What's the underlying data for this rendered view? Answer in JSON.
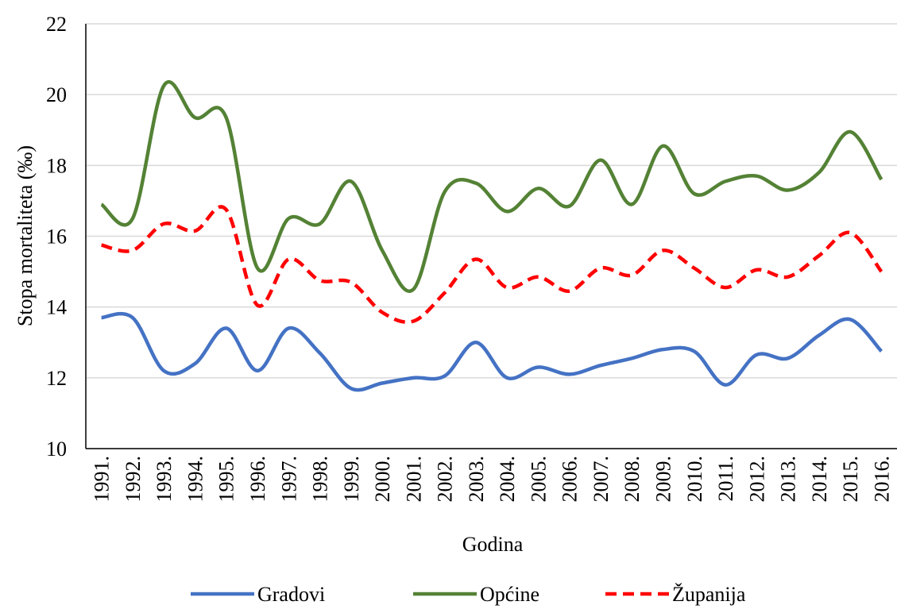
{
  "chart_data": {
    "type": "line",
    "x_label": "Godina",
    "y_label": "Stopa mortaliteta (‰)",
    "categories": [
      "1991.",
      "1992.",
      "1993.",
      "1994.",
      "1995.",
      "1996.",
      "1997.",
      "1998.",
      "1999.",
      "2000.",
      "2001.",
      "2002.",
      "2003.",
      "2004.",
      "2005.",
      "2006.",
      "2007.",
      "2008.",
      "2009.",
      "2010.",
      "2011.",
      "2012.",
      "2013.",
      "2014.",
      "2015.",
      "2016."
    ],
    "series": [
      {
        "name": "Gradovi",
        "color": "#4472c4",
        "dashed": false,
        "values": [
          13.7,
          13.7,
          12.2,
          12.4,
          13.4,
          12.2,
          13.4,
          12.7,
          11.7,
          11.85,
          12.0,
          12.05,
          13.0,
          12.0,
          12.3,
          12.1,
          12.35,
          12.55,
          12.8,
          12.75,
          11.8,
          12.65,
          12.55,
          13.2,
          13.65,
          12.75
        ]
      },
      {
        "name": "Općine",
        "color": "#548235",
        "dashed": false,
        "values": [
          16.9,
          16.5,
          20.25,
          19.35,
          19.35,
          15.1,
          16.5,
          16.35,
          17.55,
          15.6,
          14.5,
          17.25,
          17.5,
          16.7,
          17.35,
          16.85,
          18.15,
          16.9,
          18.55,
          17.2,
          17.55,
          17.7,
          17.3,
          17.8,
          18.95,
          17.6
        ]
      },
      {
        "name": "Županija",
        "color": "#ff0000",
        "dashed": true,
        "values": [
          15.75,
          15.6,
          16.35,
          16.15,
          16.75,
          14.05,
          15.35,
          14.75,
          14.7,
          13.85,
          13.6,
          14.4,
          15.35,
          14.55,
          14.85,
          14.45,
          15.1,
          14.9,
          15.6,
          15.1,
          14.55,
          15.05,
          14.85,
          15.45,
          16.1,
          15.0
        ]
      }
    ],
    "ylim": [
      10,
      22
    ],
    "yticks": [
      10,
      12,
      14,
      16,
      18,
      20,
      22
    ],
    "grid": true,
    "smooth": true,
    "legend": "bottom"
  }
}
